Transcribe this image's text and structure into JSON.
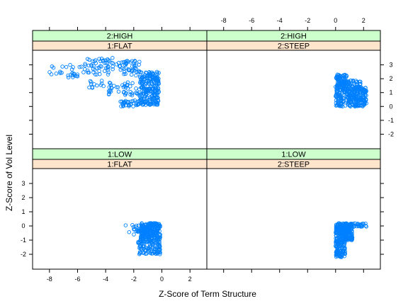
{
  "chart_data": {
    "type": "scatter",
    "title": "",
    "xlabel": "Z-Score of Term Structure",
    "ylabel": "Z-Score of Vol Level",
    "xlim": [
      -9.2,
      3.2
    ],
    "ylim": [
      -3.05,
      4.05
    ],
    "x_ticks": [
      -8,
      -6,
      -4,
      -2,
      0,
      2
    ],
    "y_ticks": [
      -2,
      -1,
      0,
      1,
      2,
      3
    ],
    "grid": false,
    "point_color": "#0080ff",
    "strip_colors": {
      "vol": "#ccffcc",
      "term": "#ffe5cc"
    },
    "layout": "2 columns x 2 rows (lattice)",
    "panels": [
      {
        "vol_strip": "2:HIGH",
        "term_strip": "1:FLAT",
        "clusters": [
          {
            "x": [
              -8.3,
              -5.5
            ],
            "y": [
              2.0,
              3.0
            ],
            "n": 28
          },
          {
            "x": [
              -5.5,
              -3.0
            ],
            "y": [
              2.3,
              3.5
            ],
            "n": 55
          },
          {
            "x": [
              -3.0,
              -1.5
            ],
            "y": [
              2.2,
              3.3
            ],
            "n": 45
          },
          {
            "x": [
              -1.6,
              -0.2
            ],
            "y": [
              0.1,
              2.5
            ],
            "n": 230
          },
          {
            "x": [
              -3.8,
              -1.5
            ],
            "y": [
              0.8,
              1.8
            ],
            "n": 40
          },
          {
            "x": [
              -3.0,
              -1.6
            ],
            "y": [
              0.0,
              0.45
            ],
            "n": 35
          },
          {
            "x": [
              -5.2,
              -3.8
            ],
            "y": [
              1.3,
              1.9
            ],
            "n": 12
          }
        ]
      },
      {
        "vol_strip": "2:HIGH",
        "term_strip": "2:STEEP",
        "clusters": [
          {
            "x": [
              0.0,
              2.2
            ],
            "y": [
              0.0,
              1.4
            ],
            "n": 280
          },
          {
            "x": [
              0.0,
              0.8
            ],
            "y": [
              1.4,
              2.3
            ],
            "n": 90
          },
          {
            "x": [
              0.8,
              1.8
            ],
            "y": [
              1.2,
              1.9
            ],
            "n": 50
          }
        ]
      },
      {
        "vol_strip": "1:LOW",
        "term_strip": "1:FLAT",
        "clusters": [
          {
            "x": [
              -1.5,
              -0.1
            ],
            "y": [
              -0.9,
              0.2
            ],
            "n": 230
          },
          {
            "x": [
              -1.7,
              -0.1
            ],
            "y": [
              -2.0,
              -0.9
            ],
            "n": 120
          },
          {
            "x": [
              -2.6,
              -1.6
            ],
            "y": [
              -0.6,
              0.15
            ],
            "n": 18
          }
        ]
      },
      {
        "vol_strip": "1:LOW",
        "term_strip": "2:STEEP",
        "clusters": [
          {
            "x": [
              0.0,
              1.2
            ],
            "y": [
              -1.0,
              0.2
            ],
            "n": 260
          },
          {
            "x": [
              0.0,
              0.7
            ],
            "y": [
              -2.2,
              -1.0
            ],
            "n": 110
          },
          {
            "x": [
              1.2,
              2.2
            ],
            "y": [
              -0.1,
              0.2
            ],
            "n": 25
          }
        ]
      }
    ]
  }
}
